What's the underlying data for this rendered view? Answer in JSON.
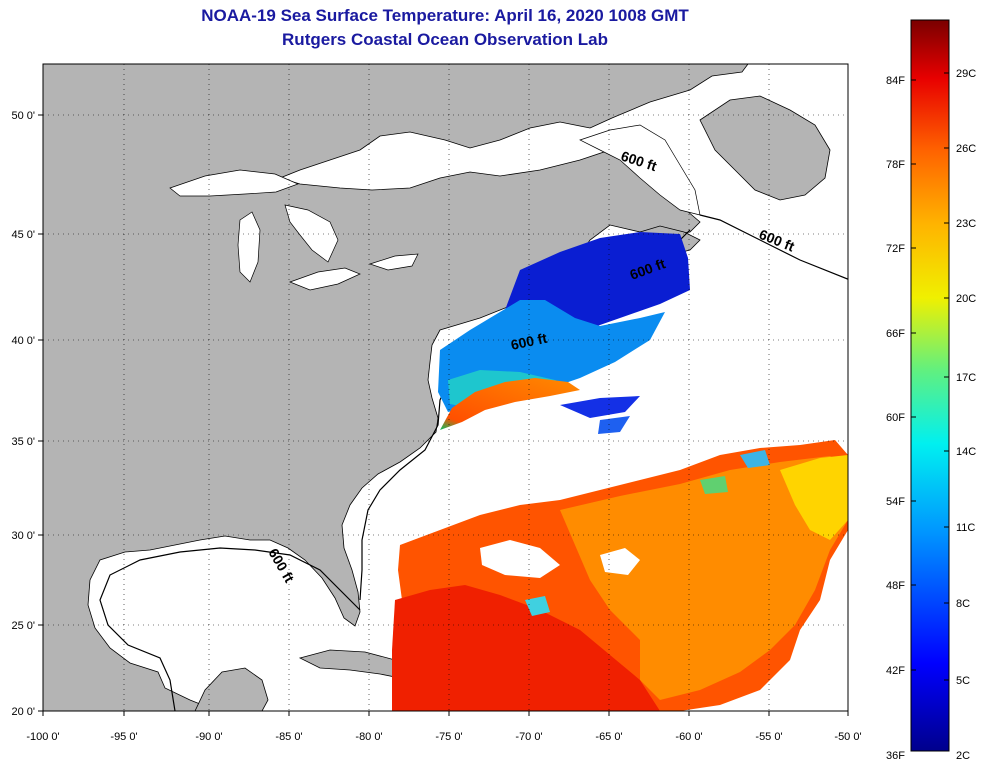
{
  "title": {
    "line1": "NOAA-19 Sea Surface Temperature:  April 16, 2020 1008 GMT",
    "line2": "Rutgers Coastal Ocean Observation Lab"
  },
  "axes": {
    "lon_labels": [
      "-100 0'",
      "-95 0'",
      "-90 0'",
      "-85 0'",
      "-80 0'",
      "-75 0'",
      "-70 0'",
      "-65 0'",
      "-60 0'",
      "-55 0'",
      "-50 0'"
    ],
    "lat_labels": [
      "50 0'",
      "45 0'",
      "40 0'",
      "35 0'",
      "30 0'",
      "25 0'",
      "20 0'"
    ]
  },
  "contour_label": "600 ft",
  "colorbar": {
    "f_labels": [
      "84F",
      "78F",
      "72F",
      "66F",
      "60F",
      "54F",
      "48F",
      "42F",
      "36F"
    ],
    "c_labels": [
      "29C",
      "26C",
      "23C",
      "20C",
      "17C",
      "14C",
      "11C",
      "8C",
      "5C",
      "2C"
    ]
  },
  "colors": {
    "title": "#1a1aa0",
    "land": "#b4b4b4",
    "ocean": "#ffffff"
  }
}
